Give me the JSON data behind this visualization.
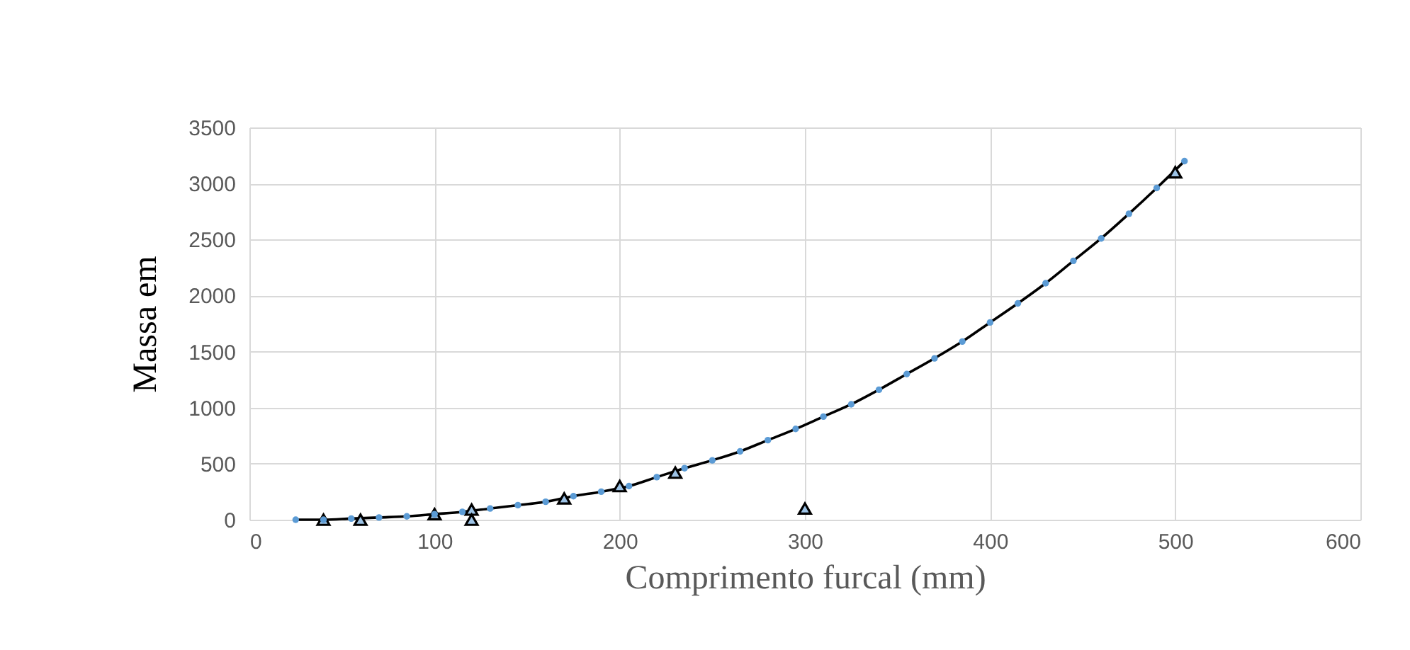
{
  "chart_data": {
    "type": "scatter",
    "xlabel": "Comprimento furcal (mm)",
    "ylabel": "Massa em",
    "xlim": [
      0,
      600
    ],
    "xticks": [
      0,
      100,
      200,
      300,
      400,
      500,
      600
    ],
    "ylim": [
      0,
      3500
    ],
    "yticks": [
      0,
      500,
      1000,
      1500,
      2000,
      2500,
      3000,
      3500
    ],
    "grid": true,
    "series": [
      {
        "type": "line",
        "line_style": "solid",
        "color": "#000000",
        "x": [
          25,
          40,
          55,
          70,
          85,
          100,
          115,
          130,
          145,
          160,
          175,
          190,
          205,
          220,
          235,
          250,
          265,
          280,
          295,
          310,
          325,
          340,
          355,
          370,
          385,
          400,
          415,
          430,
          445,
          460,
          475,
          490,
          505
        ],
        "values": [
          0,
          0,
          10,
          20,
          30,
          50,
          70,
          100,
          130,
          160,
          210,
          250,
          300,
          380,
          460,
          530,
          610,
          710,
          810,
          920,
          1030,
          1160,
          1300,
          1440,
          1590,
          1760,
          1930,
          2110,
          2310,
          2510,
          2730,
          2960,
          3200
        ]
      },
      {
        "marker": "triangle",
        "color": "#000000",
        "x": [
          40,
          60,
          100,
          120,
          120,
          170,
          200,
          230,
          300,
          500
        ],
        "values": [
          0,
          0,
          50,
          90,
          0,
          190,
          300,
          420,
          100,
          3100
        ]
      },
      {
        "marker": "circle",
        "color": "#5b9bd5",
        "x": [
          25,
          40,
          55,
          70,
          85,
          100,
          115,
          130,
          145,
          160,
          175,
          190,
          205,
          220,
          235,
          250,
          265,
          280,
          295,
          310,
          325,
          340,
          355,
          370,
          385,
          400,
          415,
          430,
          445,
          460,
          475,
          490,
          505
        ],
        "values": [
          0,
          0,
          10,
          20,
          30,
          50,
          70,
          100,
          130,
          160,
          210,
          250,
          300,
          380,
          460,
          530,
          610,
          710,
          810,
          920,
          1030,
          1160,
          1300,
          1440,
          1590,
          1760,
          1930,
          2110,
          2310,
          2510,
          2730,
          2960,
          3200
        ]
      }
    ]
  }
}
